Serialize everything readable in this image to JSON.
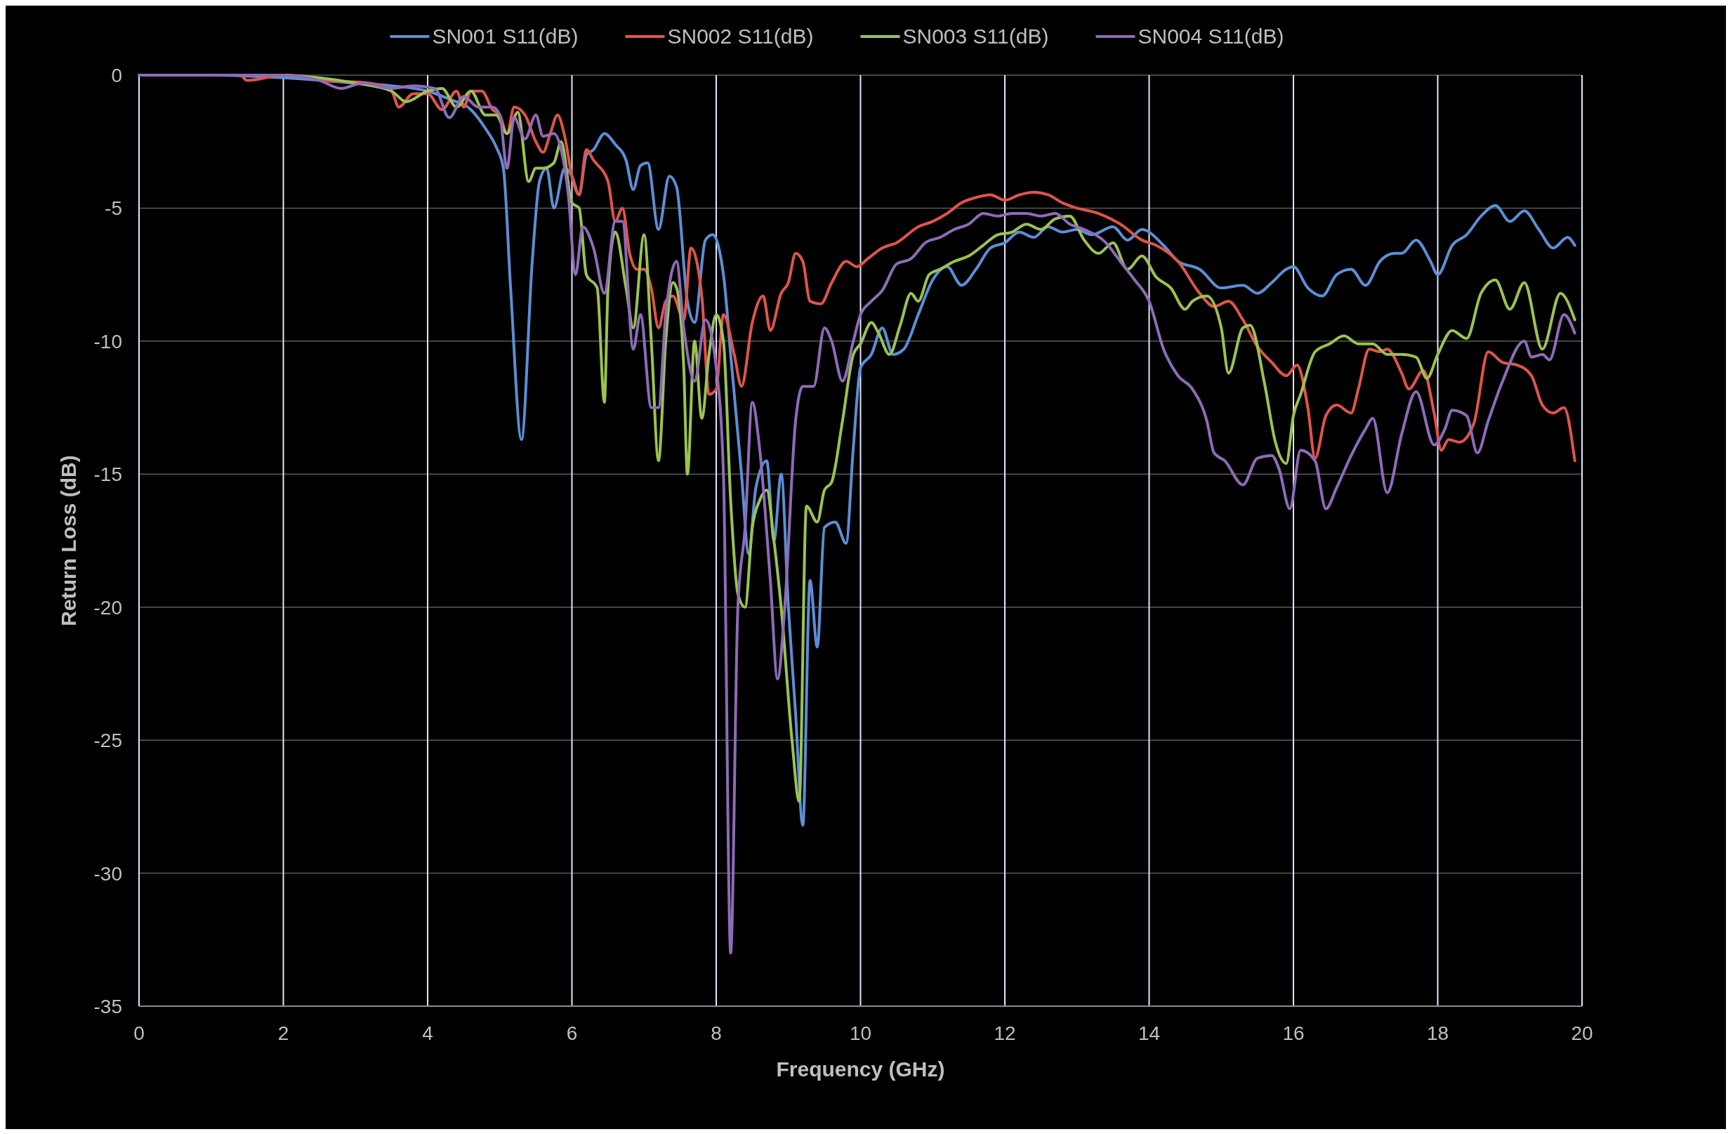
{
  "chart_data": {
    "type": "line",
    "xlabel": "Frequency (GHz)",
    "ylabel": "Return Loss (dB)",
    "xlim": [
      0,
      20
    ],
    "xticks": [
      0,
      2,
      4,
      6,
      8,
      10,
      12,
      14,
      16,
      18,
      20
    ],
    "ylim": [
      -35,
      0
    ],
    "yticks": [
      -35,
      -30,
      -25,
      -20,
      -15,
      -10,
      -5,
      0
    ],
    "grid": true,
    "legend": "top",
    "line_style": "solid",
    "marker": "none",
    "series": [
      {
        "name": "SN001 S11(dB)",
        "color": "#5b8fd6",
        "x": [
          0,
          1,
          2,
          3,
          3.5,
          4,
          4.3,
          4.6,
          4.8,
          4.95,
          5.05,
          5.15,
          5.3,
          5.45,
          5.55,
          5.65,
          5.75,
          5.9,
          6.0,
          6.1,
          6.2,
          6.3,
          6.45,
          6.6,
          6.75,
          6.85,
          6.95,
          7.05,
          7.2,
          7.35,
          7.45,
          7.6,
          7.7,
          7.85,
          7.95,
          8.1,
          8.2,
          8.35,
          8.45,
          8.55,
          8.7,
          8.8,
          8.9,
          9.0,
          9.1,
          9.2,
          9.3,
          9.4,
          9.5,
          9.65,
          9.8,
          9.9,
          10.0,
          10.15,
          10.3,
          10.45,
          10.6,
          10.8,
          11.0,
          11.2,
          11.4,
          11.6,
          11.8,
          12.0,
          12.2,
          12.4,
          12.6,
          12.8,
          13.0,
          13.2,
          13.5,
          13.7,
          13.9,
          14.2,
          14.4,
          14.7,
          15.0,
          15.3,
          15.5,
          15.7,
          15.9,
          16.0,
          16.2,
          16.4,
          16.6,
          16.8,
          17.0,
          17.2,
          17.4,
          17.5,
          17.7,
          17.9,
          18.0,
          18.2,
          18.4,
          18.6,
          18.8,
          19.0,
          19.2,
          19.4,
          19.6,
          19.8,
          19.9
        ],
        "values": [
          0,
          0,
          -0.1,
          -0.3,
          -0.4,
          -0.6,
          -0.9,
          -1.3,
          -2,
          -2.7,
          -3.5,
          -8,
          -13.7,
          -7,
          -4,
          -3.5,
          -5,
          -3.5,
          -3.8,
          -4.5,
          -3,
          -2.8,
          -2.2,
          -2.6,
          -3.2,
          -4.3,
          -3.4,
          -3.3,
          -5.8,
          -3.8,
          -4.2,
          -8.5,
          -9.3,
          -6.2,
          -6,
          -7.5,
          -10.5,
          -15,
          -18,
          -15.5,
          -14.5,
          -17.5,
          -15,
          -20,
          -24,
          -28.2,
          -19,
          -21.5,
          -17,
          -16.8,
          -17.6,
          -14,
          -11,
          -10.5,
          -9.5,
          -10.5,
          -10.3,
          -9,
          -7.7,
          -7.2,
          -7.9,
          -7.3,
          -6.5,
          -6.3,
          -5.9,
          -6.1,
          -5.7,
          -5.9,
          -5.8,
          -6,
          -5.7,
          -6.2,
          -5.8,
          -6.4,
          -7,
          -7.3,
          -8,
          -7.9,
          -8.2,
          -7.8,
          -7.3,
          -7.2,
          -8,
          -8.3,
          -7.5,
          -7.3,
          -7.9,
          -7,
          -6.7,
          -6.7,
          -6.2,
          -7,
          -7.5,
          -6.4,
          -6,
          -5.3,
          -4.9,
          -5.5,
          -5.1,
          -5.8,
          -6.5,
          -6.1,
          -6.4
        ]
      },
      {
        "name": "SN002 S11(dB)",
        "color": "#e0544b",
        "x": [
          0,
          1.4,
          1.5,
          2,
          2.6,
          3.2,
          3.5,
          3.6,
          3.8,
          4.0,
          4.2,
          4.4,
          4.5,
          4.6,
          4.75,
          4.9,
          5.0,
          5.1,
          5.2,
          5.35,
          5.5,
          5.6,
          5.7,
          5.8,
          5.9,
          6.0,
          6.1,
          6.2,
          6.3,
          6.5,
          6.6,
          6.7,
          6.8,
          6.9,
          7.0,
          7.1,
          7.2,
          7.3,
          7.4,
          7.55,
          7.65,
          7.8,
          7.9,
          8.0,
          8.1,
          8.25,
          8.35,
          8.5,
          8.65,
          8.75,
          8.9,
          9.0,
          9.1,
          9.2,
          9.3,
          9.45,
          9.6,
          9.8,
          9.95,
          10.1,
          10.3,
          10.5,
          10.8,
          11.0,
          11.2,
          11.4,
          11.6,
          11.8,
          12.0,
          12.2,
          12.4,
          12.6,
          12.8,
          13.0,
          13.3,
          13.6,
          13.9,
          14.1,
          14.4,
          14.7,
          14.9,
          15.1,
          15.3,
          15.5,
          15.7,
          15.9,
          16.05,
          16.2,
          16.3,
          16.45,
          16.6,
          16.8,
          16.9,
          17.05,
          17.2,
          17.3,
          17.5,
          17.6,
          17.8,
          17.95,
          18.05,
          18.15,
          18.3,
          18.5,
          18.7,
          18.9,
          19.1,
          19.3,
          19.45,
          19.6,
          19.75,
          19.9
        ],
        "values": [
          0,
          0,
          -0.2,
          0,
          -0.2,
          -0.3,
          -0.6,
          -1.2,
          -0.7,
          -0.7,
          -1.3,
          -0.6,
          -1.2,
          -0.6,
          -0.6,
          -1.3,
          -1.5,
          -2.2,
          -1.2,
          -1.5,
          -2.5,
          -2.9,
          -2.2,
          -1.5,
          -2.3,
          -3.8,
          -4.5,
          -2.8,
          -3.2,
          -4,
          -5.5,
          -5,
          -6.7,
          -7.3,
          -7.3,
          -8,
          -9.5,
          -8.5,
          -8.3,
          -9.2,
          -6.5,
          -8.3,
          -12,
          -11.8,
          -9,
          -10.5,
          -11.7,
          -9.3,
          -8.3,
          -9.6,
          -8.2,
          -7.8,
          -6.7,
          -7,
          -8.5,
          -8.6,
          -7.8,
          -7,
          -7.2,
          -6.9,
          -6.5,
          -6.3,
          -5.7,
          -5.5,
          -5.2,
          -4.8,
          -4.6,
          -4.5,
          -4.7,
          -4.5,
          -4.4,
          -4.5,
          -4.8,
          -5,
          -5.2,
          -5.6,
          -6.2,
          -6.4,
          -7,
          -8.2,
          -8.7,
          -8.5,
          -9.2,
          -10.2,
          -10.8,
          -11.3,
          -10.9,
          -12.5,
          -14.4,
          -12.8,
          -12.4,
          -12.7,
          -11.8,
          -10.3,
          -10.4,
          -10.3,
          -11.2,
          -11.8,
          -11.1,
          -12.7,
          -14.1,
          -13.7,
          -13.8,
          -13.1,
          -10.4,
          -10.8,
          -10.9,
          -11.3,
          -12.4,
          -12.7,
          -12.5,
          -14.5
        ]
      },
      {
        "name": "SN003 S11(dB)",
        "color": "#9bc350",
        "x": [
          0,
          2,
          2.5,
          3,
          3.5,
          3.7,
          4.0,
          4.2,
          4.4,
          4.6,
          4.8,
          4.95,
          5.1,
          5.25,
          5.4,
          5.5,
          5.6,
          5.75,
          5.85,
          6.0,
          6.1,
          6.2,
          6.35,
          6.45,
          6.5,
          6.6,
          6.75,
          6.85,
          7.0,
          7.1,
          7.2,
          7.3,
          7.4,
          7.45,
          7.55,
          7.6,
          7.7,
          7.8,
          7.9,
          8.0,
          8.1,
          8.2,
          8.3,
          8.4,
          8.5,
          8.6,
          8.7,
          8.8,
          8.9,
          9.05,
          9.15,
          9.25,
          9.4,
          9.5,
          9.6,
          9.75,
          9.9,
          10.0,
          10.15,
          10.25,
          10.4,
          10.55,
          10.7,
          10.8,
          10.95,
          11.1,
          11.3,
          11.5,
          11.7,
          11.9,
          12.1,
          12.3,
          12.5,
          12.7,
          12.9,
          13.1,
          13.3,
          13.5,
          13.7,
          13.9,
          14.1,
          14.3,
          14.5,
          14.6,
          14.8,
          15.0,
          15.1,
          15.3,
          15.4,
          15.6,
          15.75,
          15.9,
          16.0,
          16.1,
          16.3,
          16.5,
          16.7,
          16.9,
          17.1,
          17.3,
          17.5,
          17.7,
          17.85,
          18.0,
          18.2,
          18.4,
          18.6,
          18.8,
          19.0,
          19.2,
          19.45,
          19.7,
          19.9
        ],
        "values": [
          0,
          0,
          -0.1,
          -0.3,
          -0.6,
          -1,
          -0.6,
          -0.5,
          -1.2,
          -0.6,
          -1.5,
          -1.5,
          -2.2,
          -1.4,
          -4,
          -3.5,
          -3.5,
          -3.3,
          -2.5,
          -4.8,
          -5,
          -7.5,
          -8,
          -12.3,
          -8,
          -5.9,
          -8,
          -9.5,
          -6,
          -10,
          -14.5,
          -10,
          -7.8,
          -8,
          -11,
          -15,
          -10,
          -12.9,
          -10.5,
          -9,
          -10,
          -16,
          -19.5,
          -20,
          -17,
          -16,
          -15.6,
          -17.5,
          -20,
          -25,
          -27.3,
          -16.2,
          -16.8,
          -15.6,
          -15.3,
          -13,
          -10.5,
          -10.1,
          -9.3,
          -9.7,
          -10.5,
          -9.4,
          -8.2,
          -8.5,
          -7.5,
          -7.3,
          -7,
          -6.8,
          -6.4,
          -6,
          -5.9,
          -5.6,
          -5.8,
          -5.4,
          -5.3,
          -6.2,
          -6.7,
          -6.3,
          -7.3,
          -6.8,
          -7.6,
          -8,
          -8.8,
          -8.5,
          -8.3,
          -9.5,
          -11.2,
          -9.5,
          -9.4,
          -11.6,
          -13.8,
          -14.6,
          -12.8,
          -12,
          -10.4,
          -10.1,
          -9.8,
          -10.1,
          -10.1,
          -10.5,
          -10.5,
          -10.6,
          -11.4,
          -10.5,
          -9.6,
          -9.9,
          -8.2,
          -7.7,
          -8.8,
          -7.8,
          -10.3,
          -8.2,
          -9.2
        ]
      },
      {
        "name": "SN004 S11(dB)",
        "color": "#8e6bb8",
        "x": [
          0,
          2,
          2.5,
          2.8,
          3.1,
          3.5,
          3.8,
          4.1,
          4.3,
          4.5,
          4.7,
          4.9,
          5.0,
          5.1,
          5.2,
          5.35,
          5.5,
          5.6,
          5.75,
          5.85,
          5.95,
          6.05,
          6.15,
          6.3,
          6.45,
          6.6,
          6.7,
          6.85,
          6.95,
          7.1,
          7.2,
          7.3,
          7.45,
          7.55,
          7.7,
          7.85,
          8.0,
          8.1,
          8.2,
          8.3,
          8.4,
          8.5,
          8.6,
          8.75,
          8.85,
          8.95,
          9.1,
          9.2,
          9.35,
          9.5,
          9.6,
          9.75,
          9.9,
          10.0,
          10.15,
          10.3,
          10.5,
          10.7,
          10.9,
          11.1,
          11.3,
          11.5,
          11.7,
          11.9,
          12.1,
          12.3,
          12.5,
          12.7,
          12.9,
          13.1,
          13.4,
          13.6,
          13.8,
          14.0,
          14.2,
          14.4,
          14.6,
          14.8,
          14.9,
          15.05,
          15.3,
          15.5,
          15.7,
          15.8,
          15.95,
          16.1,
          16.3,
          16.45,
          16.6,
          16.8,
          17.0,
          17.1,
          17.3,
          17.5,
          17.7,
          17.95,
          18.1,
          18.2,
          18.4,
          18.55,
          18.7,
          18.9,
          19.2,
          19.3,
          19.45,
          19.55,
          19.75,
          19.9
        ],
        "values": [
          0,
          0,
          -0.2,
          -0.5,
          -0.3,
          -0.5,
          -0.4,
          -0.5,
          -1.6,
          -0.8,
          -1.2,
          -1.2,
          -1.5,
          -3.5,
          -1.6,
          -2.4,
          -1.5,
          -2.3,
          -2.2,
          -2.8,
          -4.5,
          -7.5,
          -5.7,
          -6.5,
          -8.2,
          -5.5,
          -5.5,
          -10.3,
          -9,
          -12.5,
          -12.5,
          -9,
          -7,
          -9.5,
          -11.5,
          -9.2,
          -11,
          -15,
          -33,
          -20,
          -17,
          -12.3,
          -14,
          -19,
          -22.7,
          -20,
          -13,
          -11.7,
          -11.7,
          -9.5,
          -10,
          -11.5,
          -10,
          -9,
          -8.5,
          -8.1,
          -7.1,
          -6.9,
          -6.3,
          -6.1,
          -5.8,
          -5.6,
          -5.2,
          -5.3,
          -5.2,
          -5.2,
          -5.3,
          -5.2,
          -5.6,
          -5.8,
          -6.3,
          -7,
          -7.7,
          -8.5,
          -10.3,
          -11.3,
          -11.8,
          -13,
          -14.2,
          -14.5,
          -15.4,
          -14.4,
          -14.3,
          -14.8,
          -16.3,
          -14.1,
          -14.5,
          -16.3,
          -15.5,
          -14.3,
          -13.3,
          -12.9,
          -15.7,
          -13.5,
          -11.9,
          -13.9,
          -13.3,
          -12.6,
          -12.8,
          -14.2,
          -13,
          -11.5,
          -10,
          -10.6,
          -10.5,
          -10.7,
          -9,
          -9.7
        ]
      }
    ]
  }
}
